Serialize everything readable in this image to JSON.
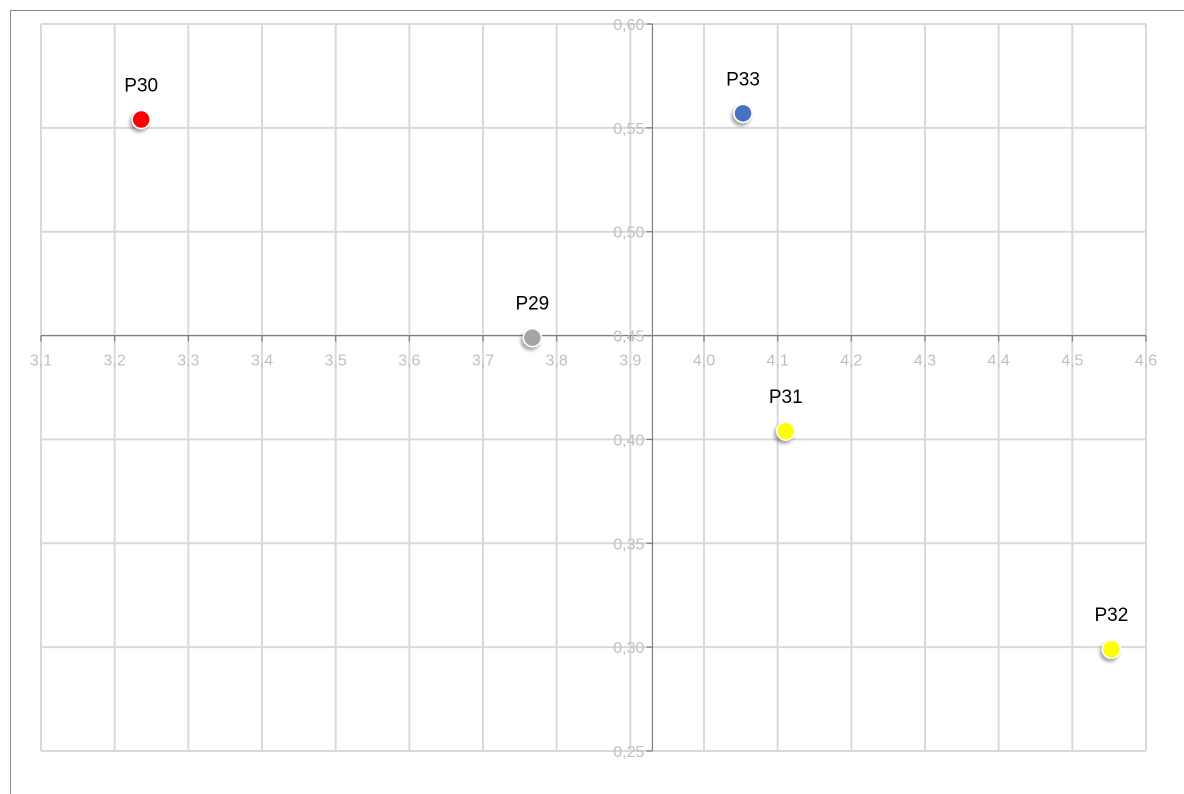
{
  "chart_data": {
    "type": "scatter",
    "title": "",
    "xlabel": "",
    "ylabel": "",
    "xlim": [
      3.1,
      4.6
    ],
    "ylim": [
      0.25,
      0.6
    ],
    "x_ticks": [
      "3,1",
      "3,2",
      "3,3",
      "3,4",
      "3,5",
      "3,6",
      "3,7",
      "3,8",
      "3,9",
      "4,0",
      "4,1",
      "4,2",
      "4,3",
      "4,4",
      "4,5",
      "4,6"
    ],
    "y_ticks": [
      "0,25",
      "0,30",
      "0,35",
      "0,40",
      "0,45",
      "0,50",
      "0,55",
      "0,60"
    ],
    "x_axis_crosses_y": 0.45,
    "y_axis_crosses_x": 3.93,
    "grid": true,
    "legend": "none",
    "points": [
      {
        "label": "P30",
        "x": 3.236,
        "y": 0.554,
        "color": "#ff0000"
      },
      {
        "label": "P33",
        "x": 4.053,
        "y": 0.557,
        "color": "#4472c4"
      },
      {
        "label": "P29",
        "x": 3.767,
        "y": 0.449,
        "color": "#a5a5a5"
      },
      {
        "label": "P31",
        "x": 4.111,
        "y": 0.404,
        "color": "#ffff00"
      },
      {
        "label": "P32",
        "x": 4.553,
        "y": 0.299,
        "color": "#ffff00"
      }
    ]
  }
}
